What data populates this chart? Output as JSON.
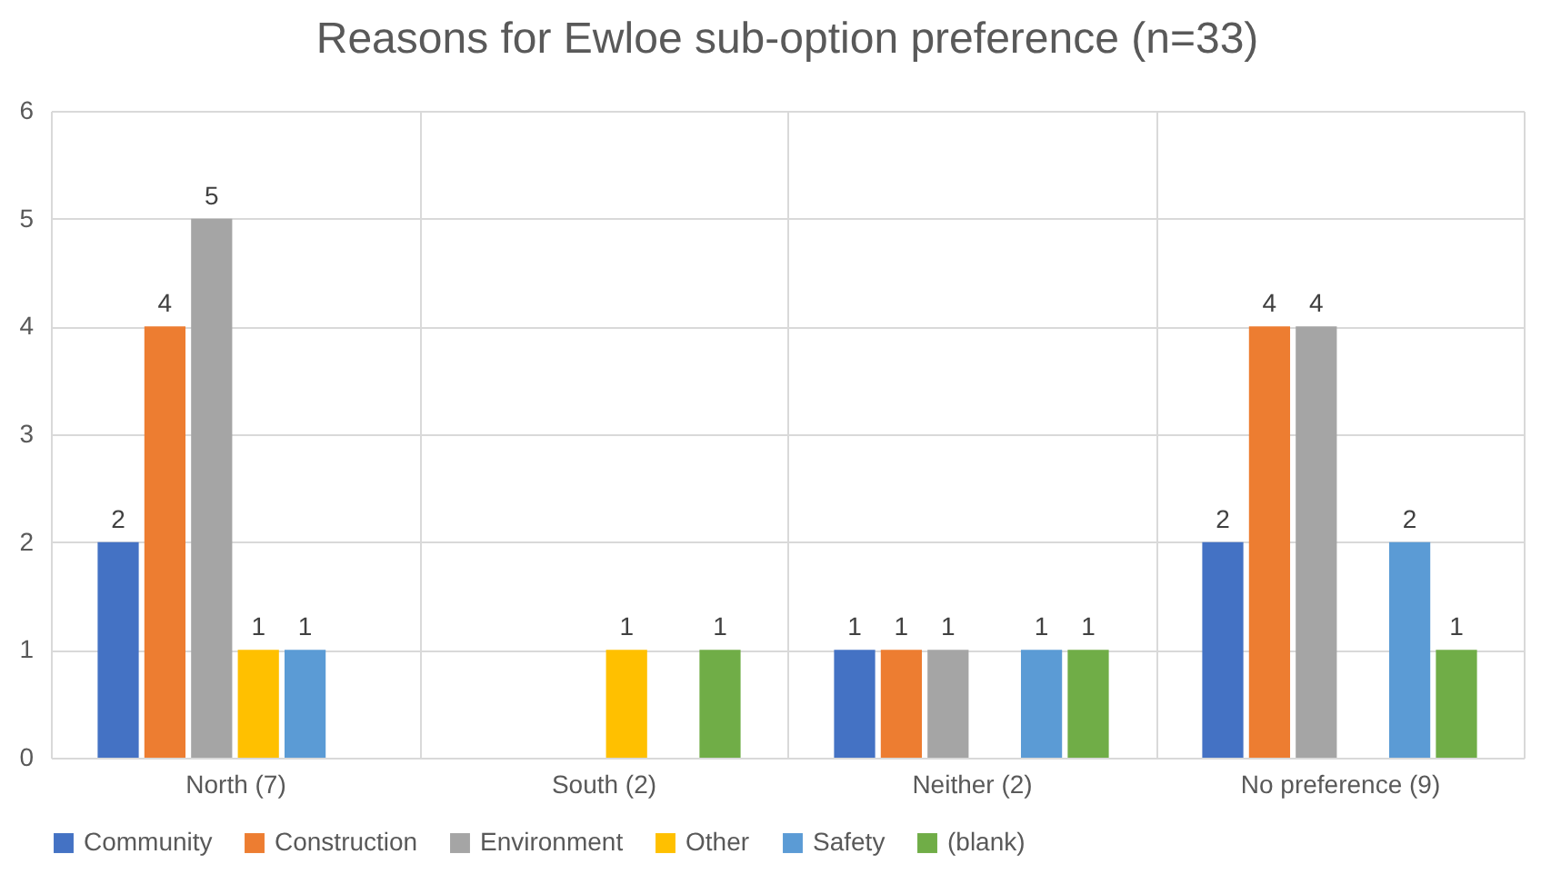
{
  "chart_data": {
    "type": "bar",
    "title": "Reasons for Ewloe sub-option preference (n=33)",
    "categories": [
      "North (7)",
      "South (2)",
      "Neither (2)",
      "No preference (9)"
    ],
    "series": [
      {
        "name": "Community",
        "color": "#4472c4",
        "values": [
          2,
          null,
          1,
          2
        ]
      },
      {
        "name": "Construction",
        "color": "#ed7d31",
        "values": [
          4,
          null,
          1,
          4
        ]
      },
      {
        "name": "Environment",
        "color": "#a5a5a5",
        "values": [
          5,
          null,
          1,
          4
        ]
      },
      {
        "name": "Other",
        "color": "#ffc000",
        "values": [
          1,
          1,
          null,
          null
        ]
      },
      {
        "name": "Safety",
        "color": "#5b9bd5",
        "values": [
          1,
          null,
          1,
          2
        ]
      },
      {
        "name": "(blank)",
        "color": "#70ad47",
        "values": [
          null,
          1,
          1,
          1
        ]
      }
    ],
    "ylim": [
      0,
      6
    ],
    "yticks": [
      0,
      1,
      2,
      3,
      4,
      5,
      6
    ],
    "grid": true,
    "legend": "bottom",
    "data_labels": true
  }
}
